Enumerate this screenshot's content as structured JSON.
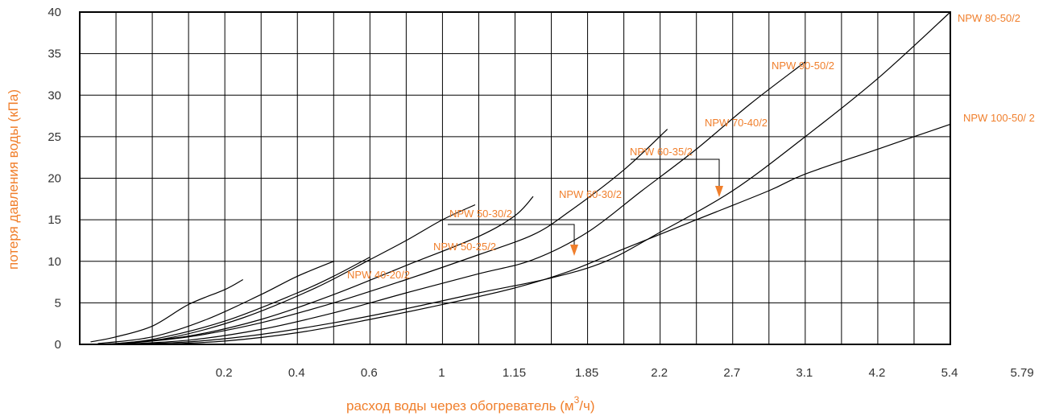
{
  "chart_data": {
    "type": "line",
    "xlabel": "расход воды через обогреватель (м",
    "xlabel_sup": "3",
    "xlabel_tail": "/ч)",
    "ylabel": "потеря давления воды (кПа)",
    "x_tick_labels": [
      "0.2",
      "0.4",
      "0.6",
      "1",
      "1.15",
      "1.85",
      "2.2",
      "2.7",
      "3.1",
      "4.2",
      "5.4",
      "5.79"
    ],
    "y_ticks": [
      0,
      5,
      10,
      15,
      20,
      25,
      30,
      35,
      40
    ],
    "ylim": [
      0,
      40
    ],
    "x_grid_columns": 24,
    "grid": true,
    "series": [
      {
        "name": "NPW 40-20/2",
        "points": [
          [
            0.3,
            0.3
          ],
          [
            1.0,
            0.9
          ],
          [
            2.0,
            2.2
          ],
          [
            3.0,
            4.8
          ],
          [
            4.0,
            6.6
          ],
          [
            4.5,
            7.8
          ]
        ]
      },
      {
        "name": "NPW 50-25/2",
        "points": [
          [
            0.5,
            0.1
          ],
          [
            2.0,
            0.9
          ],
          [
            3.5,
            3.0
          ],
          [
            5.0,
            6.0
          ],
          [
            6.0,
            8.2
          ],
          [
            7.0,
            10.0
          ]
        ]
      },
      {
        "name": "NPW 50-30/2",
        "points": [
          [
            0.6,
            0.0
          ],
          [
            2.0,
            0.6
          ],
          [
            4.0,
            2.8
          ],
          [
            6.0,
            6.2
          ],
          [
            7.0,
            8.2
          ],
          [
            8.0,
            10.5
          ]
        ]
      },
      {
        "name": "NPW 60-30/2",
        "points": [
          [
            0.8,
            0.0
          ],
          [
            2.5,
            0.8
          ],
          [
            4.5,
            3.2
          ],
          [
            6.5,
            6.8
          ],
          [
            8.0,
            10.2
          ],
          [
            9.0,
            12.5
          ],
          [
            10.0,
            15.0
          ],
          [
            10.9,
            16.8
          ]
        ]
      },
      {
        "name": "NPW 60-35/2",
        "points": [
          [
            0.8,
            0.0
          ],
          [
            3.0,
            1.0
          ],
          [
            5.0,
            3.0
          ],
          [
            7.0,
            6.0
          ],
          [
            9.0,
            9.5
          ],
          [
            11.0,
            13.0
          ],
          [
            12.0,
            15.5
          ],
          [
            12.5,
            17.8
          ]
        ]
      },
      {
        "name": "NPW 70-40/2",
        "points": [
          [
            1.0,
            0.0
          ],
          [
            3.0,
            0.9
          ],
          [
            5.0,
            2.6
          ],
          [
            7.0,
            5.0
          ],
          [
            9.0,
            7.8
          ],
          [
            11.0,
            10.8
          ],
          [
            12.5,
            13.2
          ],
          [
            13.5,
            16.0
          ],
          [
            15.0,
            21.0
          ],
          [
            16.2,
            25.9
          ]
        ]
      },
      {
        "name": "NPW 90-50/2",
        "points": [
          [
            1.0,
            0.0
          ],
          [
            3.0,
            0.5
          ],
          [
            5.0,
            1.8
          ],
          [
            7.0,
            3.8
          ],
          [
            9.0,
            6.2
          ],
          [
            11.0,
            8.5
          ],
          [
            12.5,
            10.2
          ],
          [
            14.0,
            13.5
          ],
          [
            15.5,
            18.5
          ],
          [
            17.0,
            23.5
          ],
          [
            18.5,
            29.0
          ],
          [
            20.0,
            34.0
          ]
        ]
      },
      {
        "name": "NPW 80-50/2",
        "points": [
          [
            1.0,
            0.0
          ],
          [
            3.0,
            0.3
          ],
          [
            5.0,
            1.2
          ],
          [
            7.0,
            2.6
          ],
          [
            9.0,
            4.3
          ],
          [
            11.0,
            6.2
          ],
          [
            13.0,
            8.0
          ],
          [
            14.5,
            10.0
          ],
          [
            16.0,
            13.5
          ],
          [
            18.0,
            18.5
          ],
          [
            20.0,
            25.0
          ],
          [
            22.0,
            32.0
          ],
          [
            24.0,
            40.0
          ]
        ]
      },
      {
        "name": "NPW 100-50/ 2",
        "points": [
          [
            2.2,
            0.0
          ],
          [
            4.0,
            0.4
          ],
          [
            6.0,
            1.4
          ],
          [
            8.0,
            3.0
          ],
          [
            10.0,
            4.8
          ],
          [
            12.0,
            6.8
          ],
          [
            13.5,
            8.8
          ],
          [
            15.0,
            11.5
          ],
          [
            17.0,
            15.0
          ],
          [
            19.0,
            18.5
          ],
          [
            20.0,
            20.5
          ],
          [
            22.0,
            23.5
          ],
          [
            24.0,
            26.5
          ]
        ]
      }
    ],
    "curve_labels": [
      "NPW 80-50/2",
      "NPW 90-50/2",
      "NPW 100-50/ 2",
      "NPW 70-40/2",
      "NPW 60-35/2",
      "NPW 60-30/2",
      "NPW 50-30/2",
      "NPW 50-25/2",
      "NPW 40-20/2"
    ],
    "colors": {
      "label": "#f07f2c",
      "arrow": "#f07f2c",
      "grid": "#000000",
      "curve": "#000000",
      "tick": "#333333"
    }
  }
}
